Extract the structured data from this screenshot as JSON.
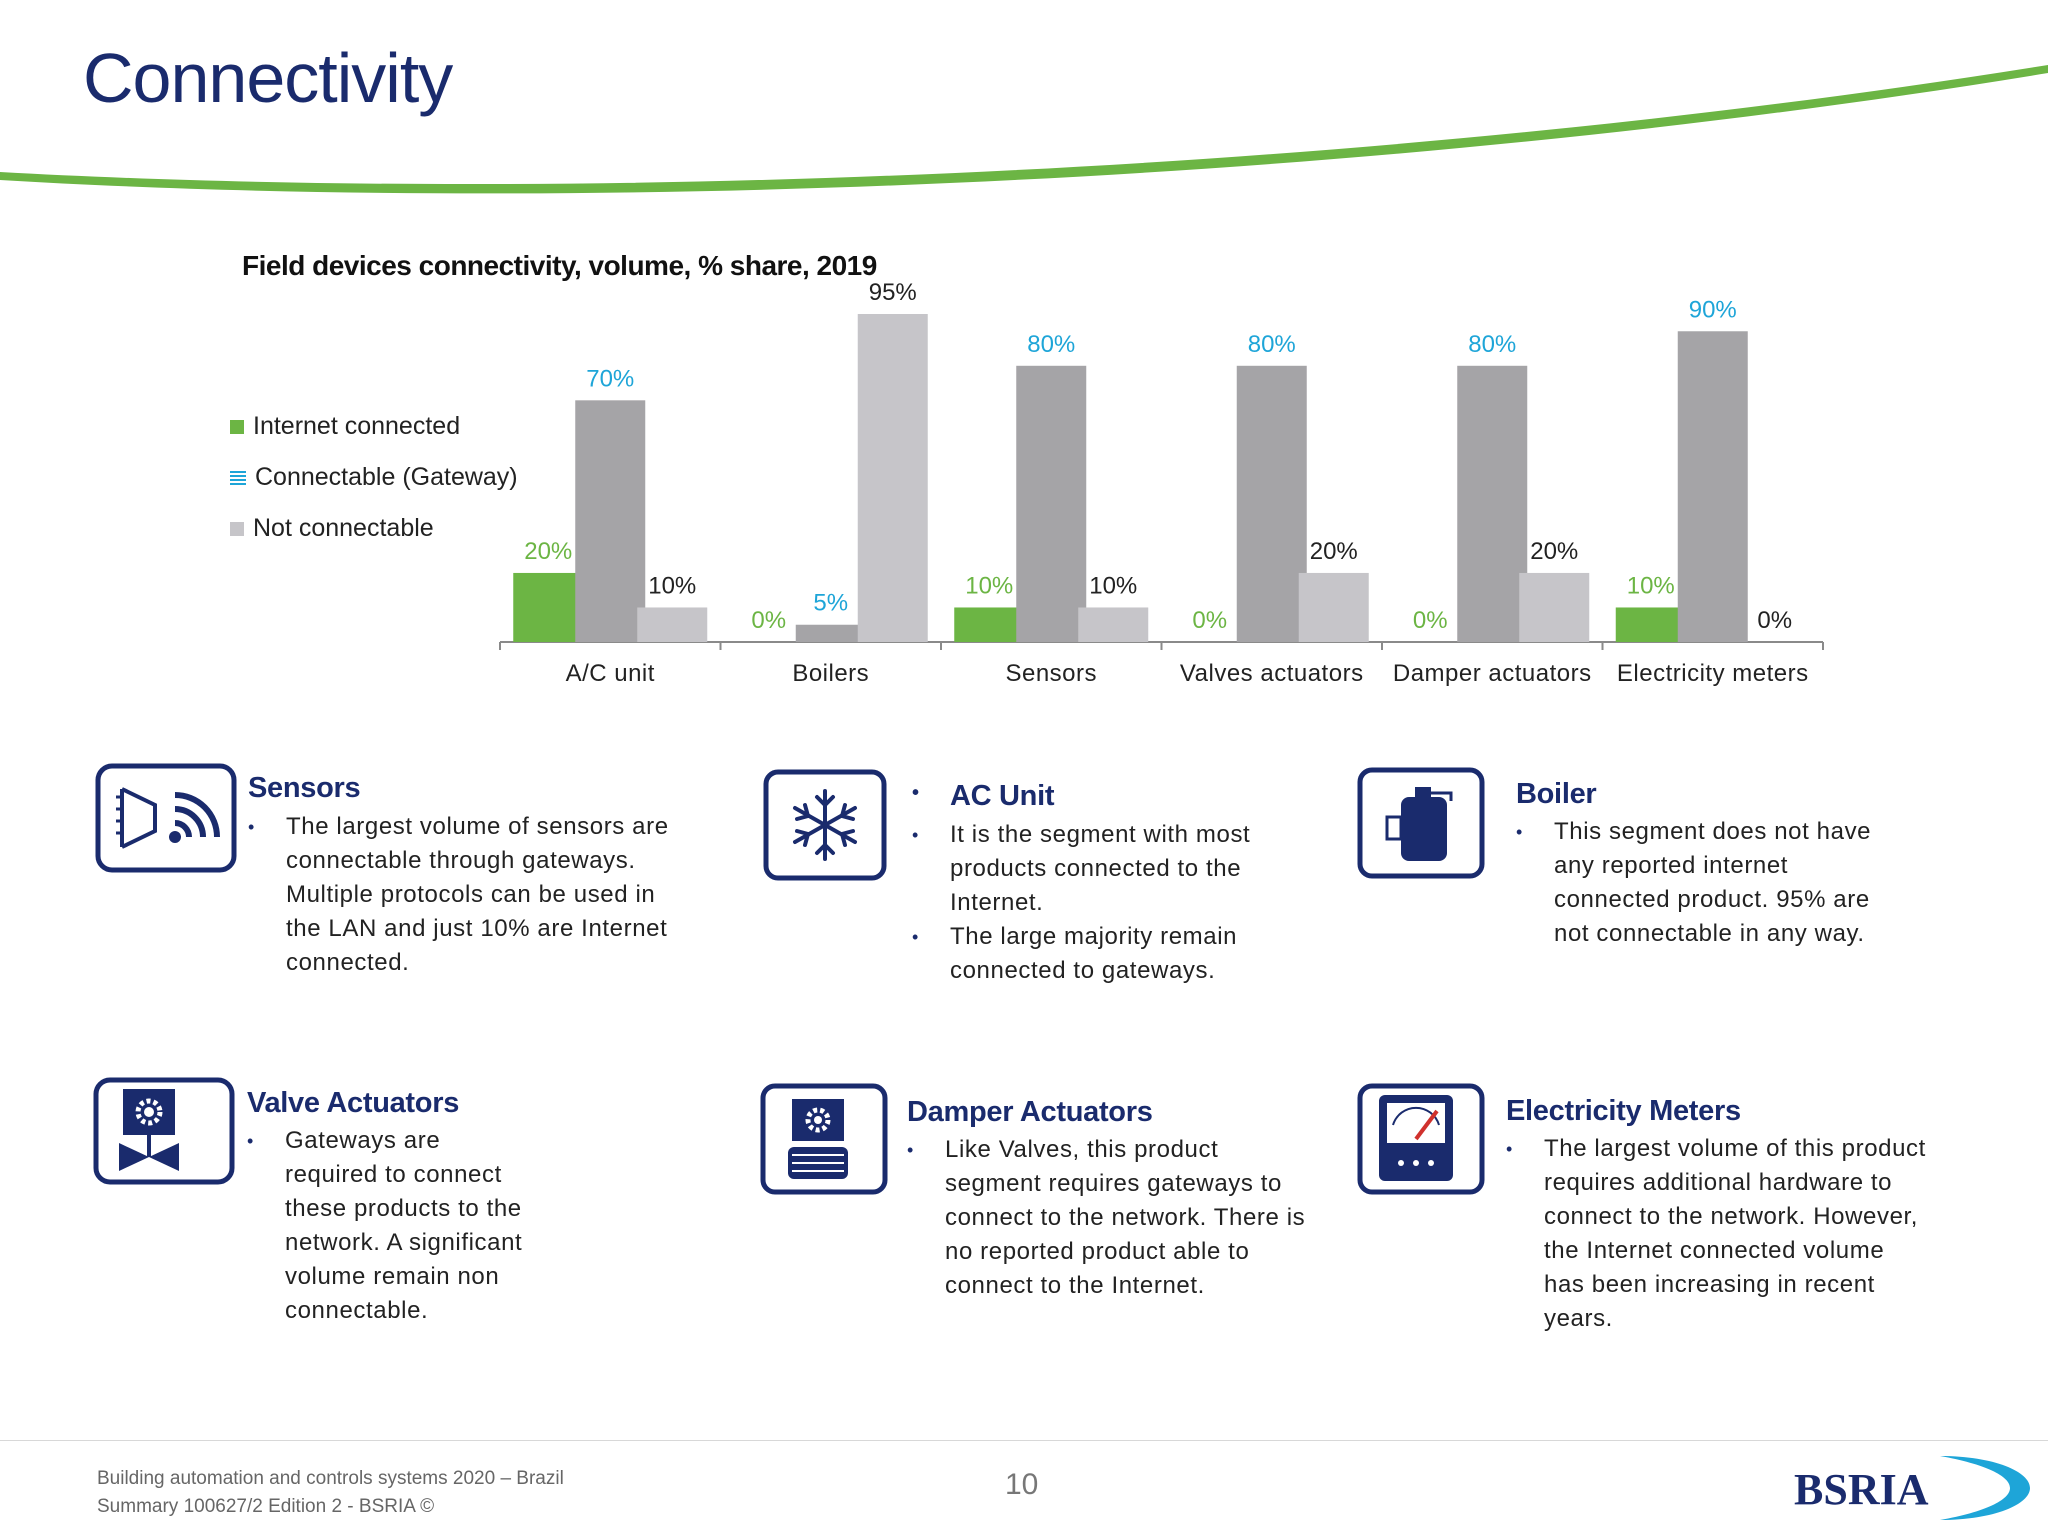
{
  "page": {
    "title": "Connectivity",
    "page_number": "10",
    "footer_line1": "Building automation and controls systems 2020 – Brazil",
    "footer_line2": "Summary 100627/2 Edition 2 - BSRIA ©",
    "logo_text": "BSRIA"
  },
  "colors": {
    "title_navy": "#1a2b6d",
    "internet_green": "#6cb544",
    "gateway_grey": "#a5a4a7",
    "not_connectable_grey": "#c6c5c9",
    "gateway_label_blue": "#1ea5d8",
    "swoosh_green": "#6cb544"
  },
  "chart_data": {
    "type": "bar",
    "title": "Field devices connectivity, volume, % share, 2019",
    "categories": [
      "A/C unit",
      "Boilers",
      "Sensors",
      "Valves actuators",
      "Damper actuators",
      "Electricity meters"
    ],
    "series": [
      {
        "name": "Internet connected",
        "values": [
          20,
          0,
          10,
          0,
          0,
          10
        ]
      },
      {
        "name": "Connectable (Gateway)",
        "values": [
          70,
          5,
          80,
          80,
          80,
          90
        ]
      },
      {
        "name": "Not connectable",
        "values": [
          10,
          95,
          10,
          20,
          20,
          0
        ]
      }
    ],
    "value_suffix": "%",
    "ylim": [
      0,
      100
    ],
    "grid": false,
    "legend_position": "left"
  },
  "cards": [
    {
      "title": "Sensors",
      "icon": "sensor-wifi-icon",
      "bullets": [
        "The largest volume of sensors are connectable through gateways. Multiple protocols can be used in the LAN and just 10% are Internet connected."
      ]
    },
    {
      "title": "AC Unit",
      "icon": "snowflake-icon",
      "bullets": [
        "It is the segment with most products connected to the Internet.",
        "The large majority remain connected to gateways."
      ]
    },
    {
      "title": "Boiler",
      "icon": "boiler-icon",
      "bullets": [
        "This segment does not have any reported internet connected product. 95% are not connectable in any way."
      ]
    },
    {
      "title": "Valve Actuators",
      "icon": "valve-actuator-icon",
      "bullets": [
        "Gateways are required to connect these products to the network. A significant volume remain non connectable."
      ]
    },
    {
      "title": "Damper Actuators",
      "icon": "damper-actuator-icon",
      "bullets": [
        "Like Valves, this product segment requires gateways to connect to the network. There is no reported product able to connect to the Internet."
      ]
    },
    {
      "title": "Electricity Meters",
      "icon": "electricity-meter-icon",
      "bullets": [
        "The largest volume of this product requires additional hardware to connect to the network. However, the Internet connected volume has been increasing in recent years."
      ]
    }
  ]
}
